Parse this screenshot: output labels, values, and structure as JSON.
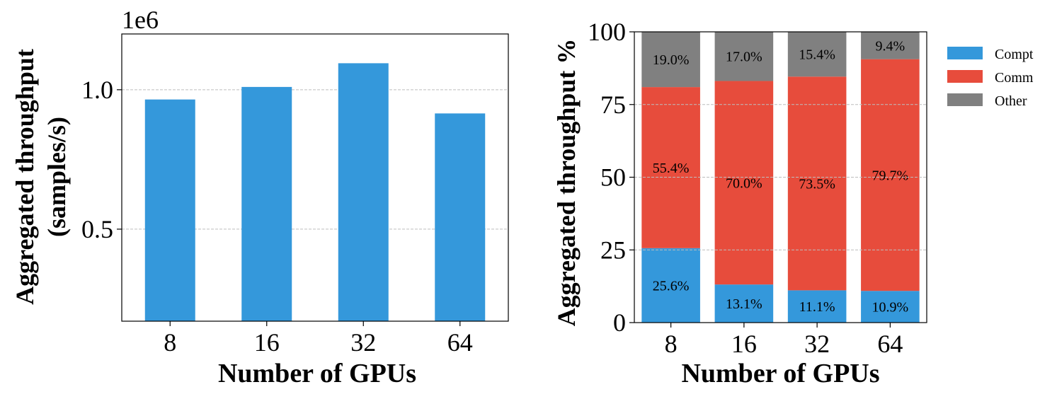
{
  "chart_data": [
    {
      "type": "bar",
      "title": "",
      "categories": [
        "8",
        "16",
        "32",
        "64"
      ],
      "values": [
        965000,
        1010000,
        1095000,
        915000
      ],
      "ylim": [
        0.17,
        1.2
      ],
      "scale_label": "1e6",
      "yticks": [
        {
          "value": 0.5,
          "label": "0.5"
        },
        {
          "value": 1.0,
          "label": "1.0"
        }
      ],
      "xlabel": "Number of GPUs",
      "ylabel_lines": [
        "Aggregated throughput",
        "(samples/s)"
      ],
      "grid": true,
      "bar_color": "#3498db"
    },
    {
      "type": "stacked-bar",
      "title": "",
      "categories": [
        "8",
        "16",
        "32",
        "64"
      ],
      "series": [
        {
          "name": "Compt",
          "color": "#3498db",
          "values": [
            25.6,
            13.1,
            11.1,
            10.9
          ],
          "labels": [
            "25.6%",
            "13.1%",
            "11.1%",
            "10.9%"
          ]
        },
        {
          "name": "Comm",
          "color": "#e74c3c",
          "values": [
            55.4,
            70.0,
            73.5,
            79.7
          ],
          "labels": [
            "55.4%",
            "70.0%",
            "73.5%",
            "79.7%"
          ]
        },
        {
          "name": "Other",
          "color": "#808080",
          "values": [
            19.0,
            17.0,
            15.4,
            9.4
          ],
          "labels": [
            "19.0%",
            "17.0%",
            "15.4%",
            "9.4%"
          ]
        }
      ],
      "ylim": [
        0,
        100
      ],
      "yticks": [
        "0",
        "25",
        "50",
        "75",
        "100"
      ],
      "xlabel": "Number of GPUs",
      "ylabel": "Aggregated throughput %",
      "legend_position": "right",
      "grid": true
    }
  ]
}
